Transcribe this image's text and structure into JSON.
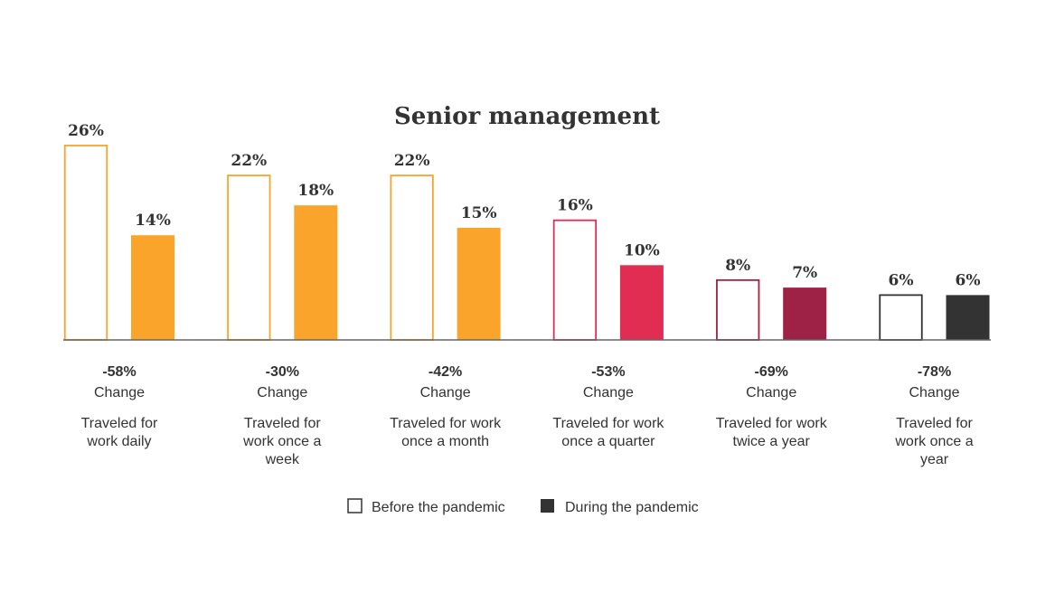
{
  "chart_data": {
    "type": "bar",
    "title": "Senior management",
    "categories": [
      [
        "Traveled for",
        "work daily"
      ],
      [
        "Traveled for",
        "work once a",
        "week"
      ],
      [
        "Traveled for work",
        "once a month"
      ],
      [
        "Traveled for work",
        "once a quarter"
      ],
      [
        "Traveled for work",
        "twice a year"
      ],
      [
        "Traveled for",
        "work once a",
        "year"
      ]
    ],
    "series": [
      {
        "name": "Before the pandemic",
        "values": [
          26,
          22,
          22,
          16,
          8,
          6
        ],
        "labels": [
          "26%",
          "22%",
          "22%",
          "16%",
          "8%",
          "6%"
        ]
      },
      {
        "name": "During the pandemic",
        "values": [
          14,
          18,
          15,
          10,
          7,
          6
        ],
        "labels": [
          "14%",
          "18%",
          "15%",
          "10%",
          "7%",
          "6%"
        ]
      }
    ],
    "changes": [
      "-58%",
      "-30%",
      "-42%",
      "-53%",
      "-69%",
      "-78%"
    ],
    "change_label": "Change",
    "group_colors": [
      "#FBA42C",
      "#FBA42C",
      "#FBA42C",
      "#E22D52",
      "#9E2146",
      "#333333"
    ],
    "legend_position": "bottom-center",
    "ylim": [
      0,
      26
    ],
    "grid": false
  }
}
